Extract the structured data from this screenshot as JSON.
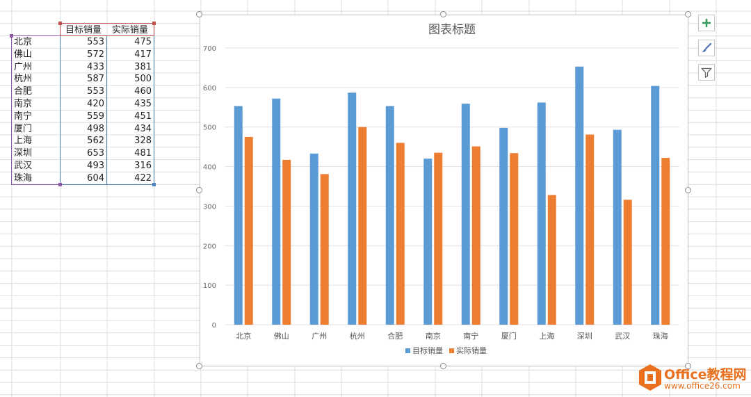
{
  "sheet": {
    "headers": [
      "目标销量",
      "实际销量"
    ],
    "rows": [
      {
        "city": "北京",
        "target": "553",
        "actual": "475"
      },
      {
        "city": "佛山",
        "target": "572",
        "actual": "417"
      },
      {
        "city": "广州",
        "target": "433",
        "actual": "381"
      },
      {
        "city": "杭州",
        "target": "587",
        "actual": "500"
      },
      {
        "city": "合肥",
        "target": "553",
        "actual": "460"
      },
      {
        "city": "南京",
        "target": "420",
        "actual": "435"
      },
      {
        "city": "南宁",
        "target": "559",
        "actual": "451"
      },
      {
        "city": "厦门",
        "target": "498",
        "actual": "434"
      },
      {
        "city": "上海",
        "target": "562",
        "actual": "328"
      },
      {
        "city": "深圳",
        "target": "653",
        "actual": "481"
      },
      {
        "city": "武汉",
        "target": "493",
        "actual": "316"
      },
      {
        "city": "珠海",
        "target": "604",
        "actual": "422"
      }
    ]
  },
  "chart_buttons": [
    {
      "name": "chart-elements-button",
      "icon": "plus-icon"
    },
    {
      "name": "chart-styles-button",
      "icon": "paintbrush-icon"
    },
    {
      "name": "chart-filters-button",
      "icon": "filter-icon"
    }
  ],
  "watermark": {
    "brand": "Office教程网",
    "url": "www.office26.com"
  },
  "colors": {
    "series1": "#5b9bd5",
    "series2": "#ed7d31",
    "grid": "#e0e0e0",
    "sheet_grid": "#dcdcdc",
    "label_sel": "#8e58a8",
    "target_sel": "#c0504d",
    "actual_sel": "#4f81bd",
    "logo": "#e8701e"
  },
  "chart_data": {
    "type": "bar",
    "title": "图表标题",
    "xlabel": "",
    "ylabel": "",
    "categories": [
      "北京",
      "佛山",
      "广州",
      "杭州",
      "合肥",
      "南京",
      "南宁",
      "厦门",
      "上海",
      "深圳",
      "武汉",
      "珠海"
    ],
    "series": [
      {
        "name": "目标销量",
        "values": [
          553,
          572,
          433,
          587,
          553,
          420,
          559,
          498,
          562,
          653,
          493,
          604
        ]
      },
      {
        "name": "实际销量",
        "values": [
          475,
          417,
          381,
          500,
          460,
          435,
          451,
          434,
          328,
          481,
          316,
          422
        ]
      }
    ],
    "ylim": [
      0,
      700
    ],
    "yticks": [
      "0",
      "100",
      "200",
      "300",
      "400",
      "500",
      "600",
      "700"
    ],
    "grid": true,
    "legend": "bottom"
  }
}
